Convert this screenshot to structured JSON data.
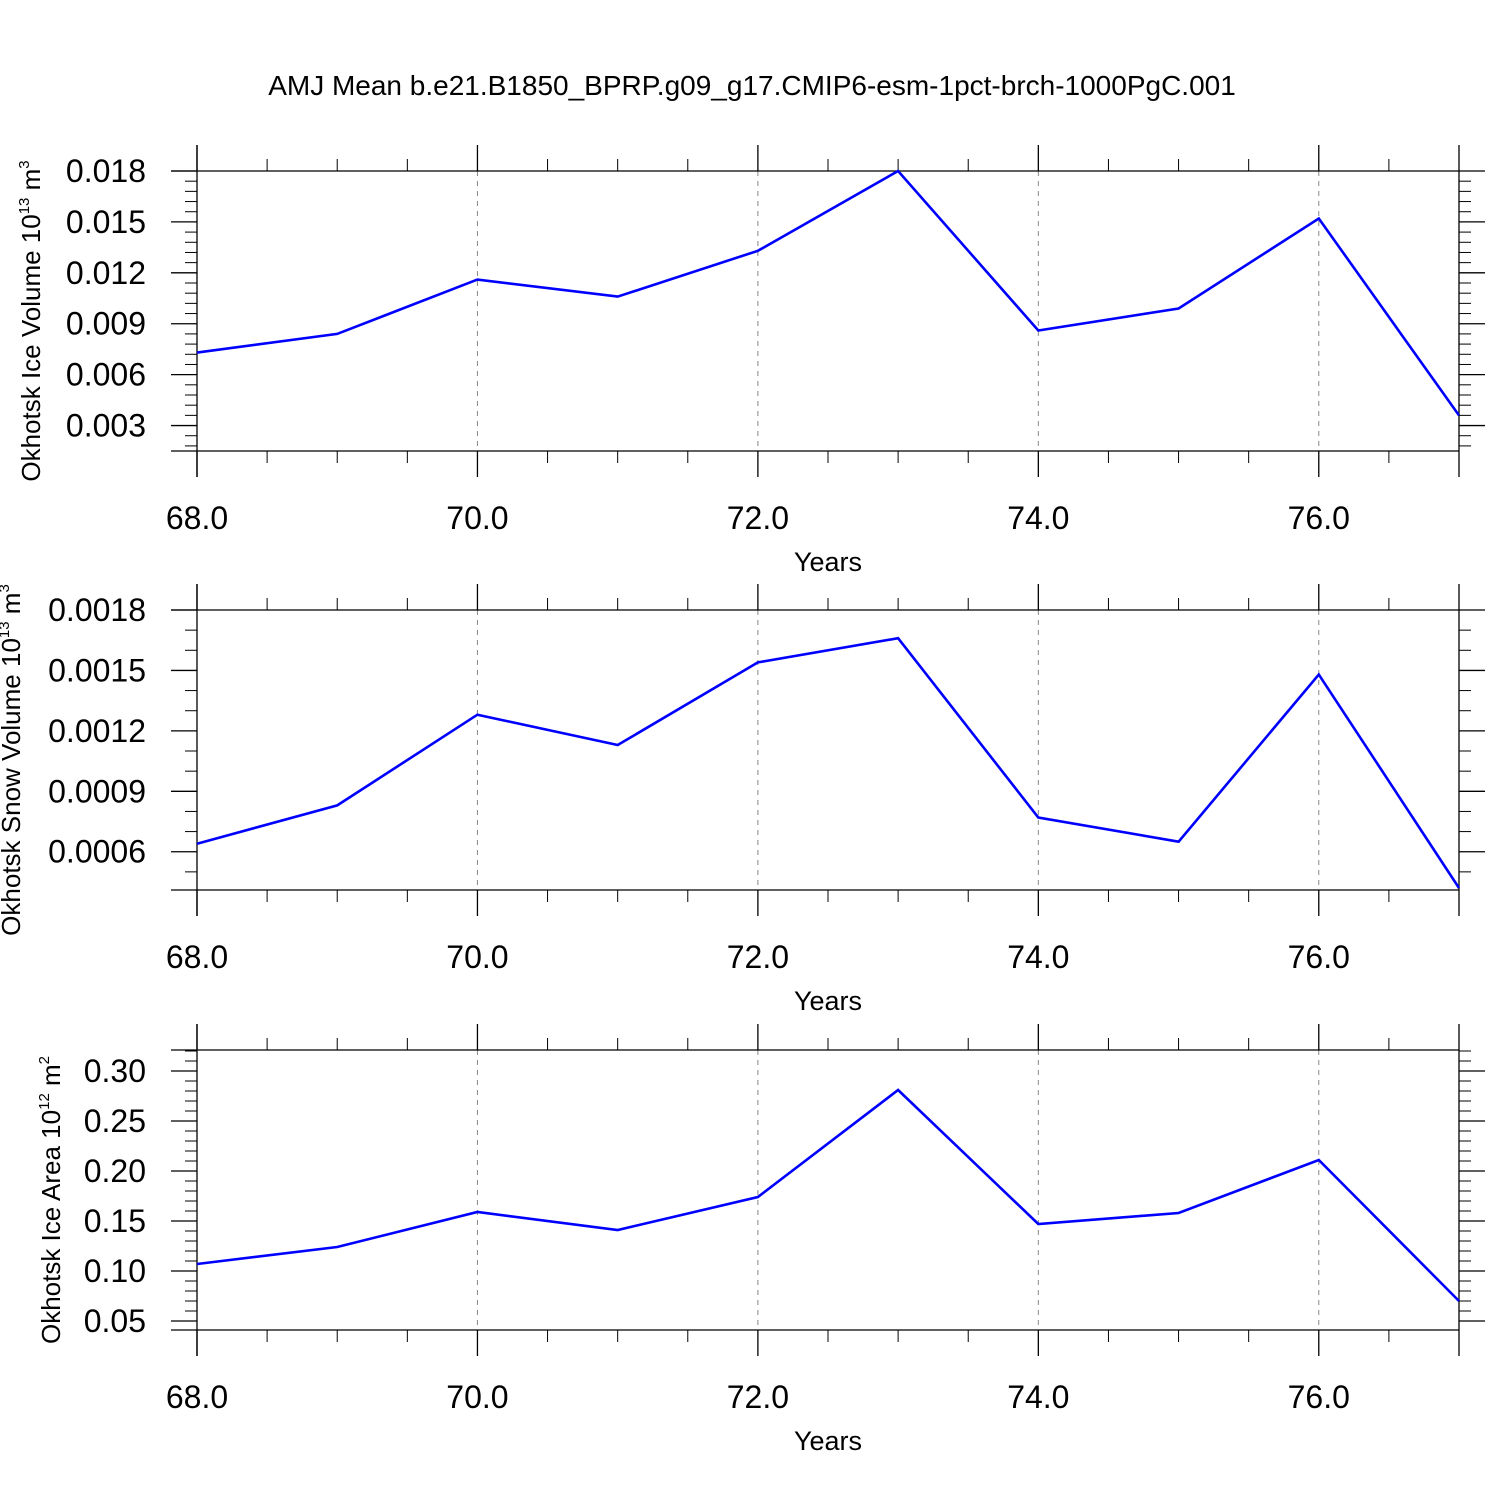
{
  "title": "AMJ Mean b.e21.B1850_BPRP.g09_g17.CMIP6-esm-1pct-brch-1000PgC.001",
  "chart_data": [
    {
      "type": "line",
      "xlabel": "Years",
      "ylabel": {
        "main": "Okhotsk Ice Volume 10",
        "exp": "13",
        "unit": " m",
        "unit_exp": "3"
      },
      "x": [
        68,
        69,
        70,
        71,
        72,
        73,
        74,
        75,
        76,
        77
      ],
      "series": [
        {
          "values": [
            0.0073,
            0.0084,
            0.0116,
            0.0106,
            0.0133,
            0.018,
            0.0086,
            0.0099,
            0.0152,
            0.0036
          ],
          "color": "#0000ff"
        }
      ],
      "xlim": [
        68,
        77
      ],
      "ylim": [
        0.0015,
        0.018
      ],
      "xticks": [
        "68.0",
        "70.0",
        "72.0",
        "74.0",
        "76.0"
      ],
      "xtick_values": [
        68,
        70,
        72,
        74,
        76
      ],
      "yticks": [
        "0.003",
        "0.006",
        "0.009",
        "0.012",
        "0.015",
        "0.018"
      ],
      "ytick_values": [
        0.003,
        0.006,
        0.009,
        0.012,
        0.015,
        0.018
      ],
      "yminor_step": 0.0006,
      "grid": "vertical dashed at major x ticks"
    },
    {
      "type": "line",
      "xlabel": "Years",
      "ylabel": {
        "main": "Okhotsk Snow Volume 10",
        "exp": "13",
        "unit": " m",
        "unit_exp": "3"
      },
      "x": [
        68,
        69,
        70,
        71,
        72,
        73,
        74,
        75,
        76,
        77
      ],
      "series": [
        {
          "values": [
            0.00064,
            0.00083,
            0.00128,
            0.00113,
            0.00154,
            0.00166,
            0.00077,
            0.00065,
            0.00148,
            0.00042
          ],
          "color": "#0000ff"
        }
      ],
      "xlim": [
        68,
        77
      ],
      "ylim": [
        0.00041,
        0.0018
      ],
      "xticks": [
        "68.0",
        "70.0",
        "72.0",
        "74.0",
        "76.0"
      ],
      "xtick_values": [
        68,
        70,
        72,
        74,
        76
      ],
      "yticks": [
        "0.0006",
        "0.0009",
        "0.0012",
        "0.0015",
        "0.0018"
      ],
      "ytick_values": [
        0.0006,
        0.0009,
        0.0012,
        0.0015,
        0.0018
      ],
      "yminor_step": 0.0001,
      "grid": "vertical dashed at major x ticks"
    },
    {
      "type": "line",
      "xlabel": "Years",
      "ylabel": {
        "main": "Okhotsk Ice Area 10",
        "exp": "12",
        "unit": " m",
        "unit_exp": "2"
      },
      "x": [
        68,
        69,
        70,
        71,
        72,
        73,
        74,
        75,
        76,
        77
      ],
      "series": [
        {
          "values": [
            0.107,
            0.124,
            0.159,
            0.141,
            0.174,
            0.281,
            0.147,
            0.158,
            0.211,
            0.07
          ],
          "color": "#0000ff"
        }
      ],
      "xlim": [
        68,
        77
      ],
      "ylim": [
        0.041,
        0.321
      ],
      "xticks": [
        "68.0",
        "70.0",
        "72.0",
        "74.0",
        "76.0"
      ],
      "xtick_values": [
        68,
        70,
        72,
        74,
        76
      ],
      "yticks": [
        "0.05",
        "0.10",
        "0.15",
        "0.20",
        "0.25",
        "0.30"
      ],
      "ytick_values": [
        0.05,
        0.1,
        0.15,
        0.2,
        0.25,
        0.3
      ],
      "yminor_step": 0.01,
      "grid": "vertical dashed at major x ticks"
    }
  ]
}
